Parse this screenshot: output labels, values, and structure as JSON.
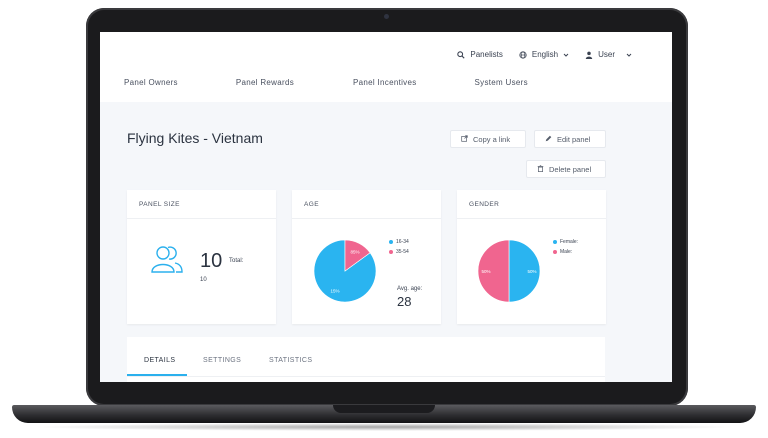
{
  "header": {
    "panelists_label": "Panelists",
    "language_label": "English",
    "user_label": "User"
  },
  "nav": {
    "items": [
      "Panel Owners",
      "Panel Rewards",
      "Panel Incentives",
      "System Users"
    ]
  },
  "page": {
    "title": "Flying Kites - Vietnam",
    "copy_link_label": "Copy a link",
    "edit_panel_label": "Edit panel",
    "delete_panel_label": "Delete panel"
  },
  "panel_size": {
    "heading": "PANEL SIZE",
    "value": "10",
    "total_label": "Total:",
    "total_value": "10"
  },
  "age": {
    "heading": "AGE",
    "legend": [
      "16-34",
      "35-54"
    ],
    "slice_labels": [
      "15%",
      "85%"
    ],
    "avg_label": "Avg. age:",
    "avg_value": "28",
    "slices": [
      {
        "name": "16-34",
        "value": 85,
        "color": "#2ab4f0"
      },
      {
        "name": "35-54",
        "value": 15,
        "color": "#f0658f"
      }
    ]
  },
  "gender": {
    "heading": "GENDER",
    "legend": [
      "Female:",
      "Male:"
    ],
    "slice_labels": [
      "50%",
      "50%"
    ],
    "slices": [
      {
        "name": "Female:",
        "value": 50,
        "color": "#2ab4f0"
      },
      {
        "name": "Male:",
        "value": 50,
        "color": "#f0658f"
      }
    ]
  },
  "tabs": {
    "items": [
      "DETAILS",
      "SETTINGS",
      "STATISTICS"
    ],
    "active": "DETAILS"
  },
  "colors": {
    "accent": "#2bb0ed",
    "female": "#2ab4f0",
    "male": "#f0658f"
  }
}
